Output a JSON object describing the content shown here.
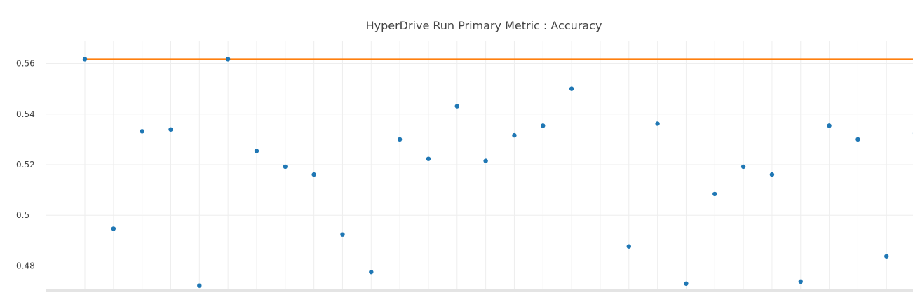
{
  "chart_data": {
    "type": "scatter",
    "title": "HyperDrive Run Primary Metric : Accuracy",
    "xlabel": "",
    "ylabel": "",
    "ylim": [
      0.471,
      0.569
    ],
    "yticks": [
      0.48,
      0.5,
      0.52,
      0.54,
      0.56
    ],
    "ytick_labels": [
      "0.48",
      "0.5",
      "0.52",
      "0.54",
      "0.56"
    ],
    "x": [
      0,
      1,
      2,
      3,
      4,
      5,
      6,
      7,
      8,
      9,
      10,
      11,
      12,
      13,
      14,
      15,
      16,
      17,
      18,
      19,
      20,
      21,
      22,
      23,
      24,
      25,
      26,
      27,
      28,
      29
    ],
    "series": [
      {
        "values": [
          0.5617,
          0.4947,
          0.5332,
          0.5339,
          0.4722,
          0.5617,
          0.5254,
          0.5192,
          0.5161,
          0.4924,
          0.4776,
          0.53,
          0.5223,
          0.5431,
          0.5215,
          0.5316,
          0.5354,
          0.55,
          null,
          0.4877,
          0.5362,
          0.473,
          0.5084,
          0.5192,
          0.5161,
          0.4738,
          0.5354,
          0.53,
          0.4838,
          0.5324
        ],
        "color": "#1f77b4"
      },
      {
        "values": [
          0.5617,
          0.5617,
          0.5617,
          0.5617,
          0.5617,
          0.5617,
          0.5617,
          0.5617,
          0.5617,
          0.5617,
          0.5617,
          0.5617,
          0.5617,
          0.5617,
          0.5617,
          0.5617,
          0.5617,
          0.5617,
          0.5617,
          0.5617,
          0.5617,
          0.5617,
          0.5617,
          0.5617,
          0.5617,
          0.5617,
          0.5617,
          0.5617,
          0.5617,
          0.5617
        ],
        "color": "#ff7f0e",
        "type": "line"
      }
    ],
    "grid": true,
    "colors": {
      "grid": "#eeeeee",
      "axis_text": "#444444",
      "zero_band": "#e4e4e4"
    }
  }
}
